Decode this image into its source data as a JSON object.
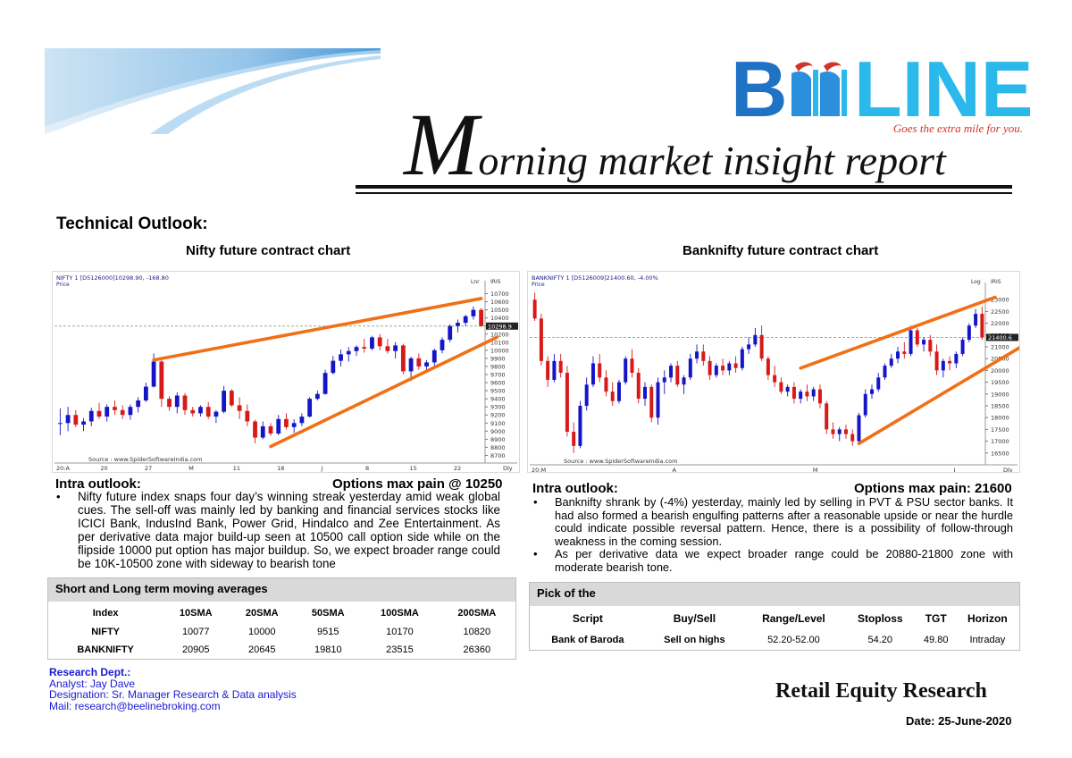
{
  "brand": {
    "logo_text": "BEELINE",
    "tagline": "Goes the extra mile for you.",
    "colors": {
      "blue": "#1f72c4",
      "light_blue": "#2bb8ea",
      "red": "#d1342b"
    }
  },
  "report": {
    "title_first_letter": "M",
    "title_rest": "orning market insight report",
    "section_heading": "Technical Outlook:"
  },
  "nifty": {
    "chart_title": "Nifty future contract chart",
    "intra_label": "Intra  outlook:",
    "options_pain": "Options max pain @  10250",
    "bullets": [
      "Nifty future index snaps four day’s winning streak yesterday amid weak global cues. The sell-off was mainly led by banking and financial services stocks like ICICI Bank, IndusInd Bank, Power Grid, Hindalco and Zee Entertainment. As per derivative data major build-up seen at 10500 call option side while on the flipside 10000 put option has major buildup. So, we expect broader range could be 10K-10500 zone with sideway to bearish tone"
    ]
  },
  "banknifty": {
    "chart_title": "Banknifty future contract chart",
    "intra_label": "Intra  outlook:",
    "options_pain": "Options max pain: 21600",
    "bullets": [
      "Banknifty shrank by (-4%) yesterday, mainly led by selling in PVT & PSU sector banks. It had also formed a bearish engulfing patterns after a reasonable upside or near the hurdle could indicate possible reversal pattern. Hence, there is a possibility of follow-through weakness in the coming session.",
      "As per derivative data we expect broader range could be 20880-21800 zone with moderate bearish tone."
    ]
  },
  "moving_averages": {
    "heading": "Short and Long term moving averages",
    "columns": [
      "Index",
      "10SMA",
      "20SMA",
      "50SMA",
      "100SMA",
      "200SMA"
    ],
    "rows": [
      [
        "NIFTY",
        "10077",
        "10000",
        "9515",
        "10170",
        "10820"
      ],
      [
        "BANKNIFTY",
        "20905",
        "20645",
        "19810",
        "23515",
        "26360"
      ]
    ]
  },
  "pick": {
    "heading": "Pick of the",
    "columns": [
      "Script",
      "Buy/Sell",
      "Range/Level",
      "Stoploss",
      "TGT",
      "Horizon"
    ],
    "rows": [
      [
        "Bank of Baroda",
        "Sell on highs",
        "52.20-52.00",
        "54.20",
        "49.80",
        "Intraday"
      ]
    ]
  },
  "research": {
    "dept": "Research Dept.:",
    "analyst": "Analyst: Jay Dave",
    "designation": "Designation: Sr. Manager Research & Data analysis",
    "mail": "Mail: research@beelinebroking.com"
  },
  "footer": {
    "retail": "Retail Equity Research",
    "date": "Date: 25-June-2020"
  },
  "chart_data": [
    {
      "type": "candlestick",
      "title": "NIFTY 1 [D5126000]10298.90,  -168.80",
      "label_sub": "Price",
      "scale_label": "Lnr",
      "side_label": "IRIS",
      "last_price_tag": "10298.9",
      "source": "Source : www.SpiderSoftwareIndia.com",
      "period_label": "Dly",
      "x_labels": [
        "20:A",
        "20",
        "27",
        "M",
        "11",
        "18",
        "J",
        "8",
        "15",
        "22"
      ],
      "y_ticks": [
        8700,
        8800,
        8900,
        9000,
        9100,
        9200,
        9300,
        9400,
        9500,
        9600,
        9700,
        9800,
        9900,
        10000,
        10100,
        10200,
        10300,
        10400,
        10500,
        10600,
        10700
      ],
      "ylim": [
        8650,
        10750
      ],
      "ohlc": [
        [
          9090,
          9280,
          8950,
          9100
        ],
        [
          9100,
          9300,
          9000,
          9200
        ],
        [
          9200,
          9260,
          9050,
          9080
        ],
        [
          9080,
          9160,
          9000,
          9120
        ],
        [
          9120,
          9290,
          9060,
          9250
        ],
        [
          9250,
          9350,
          9150,
          9180
        ],
        [
          9180,
          9330,
          9120,
          9300
        ],
        [
          9300,
          9380,
          9200,
          9260
        ],
        [
          9260,
          9320,
          9150,
          9200
        ],
        [
          9200,
          9330,
          9140,
          9300
        ],
        [
          9300,
          9420,
          9230,
          9380
        ],
        [
          9380,
          9600,
          9360,
          9550
        ],
        [
          9550,
          9960,
          9540,
          9860
        ],
        [
          9860,
          9900,
          9300,
          9400
        ],
        [
          9400,
          9430,
          9250,
          9300
        ],
        [
          9300,
          9480,
          9220,
          9440
        ],
        [
          9440,
          9470,
          9200,
          9260
        ],
        [
          9260,
          9300,
          9180,
          9220
        ],
        [
          9220,
          9320,
          9180,
          9300
        ],
        [
          9300,
          9360,
          9150,
          9180
        ],
        [
          9180,
          9260,
          9100,
          9240
        ],
        [
          9240,
          9560,
          9220,
          9500
        ],
        [
          9500,
          9520,
          9300,
          9320
        ],
        [
          9320,
          9420,
          9150,
          9250
        ],
        [
          9250,
          9330,
          9060,
          9120
        ],
        [
          9120,
          9140,
          8850,
          8920
        ],
        [
          8920,
          9120,
          8900,
          9060
        ],
        [
          9060,
          9100,
          8940,
          8970
        ],
        [
          8970,
          9200,
          8950,
          9150
        ],
        [
          9150,
          9220,
          9020,
          9050
        ],
        [
          9050,
          9150,
          8980,
          9100
        ],
        [
          9100,
          9220,
          9060,
          9180
        ],
        [
          9180,
          9420,
          9170,
          9400
        ],
        [
          9400,
          9500,
          9380,
          9460
        ],
        [
          9460,
          9760,
          9450,
          9720
        ],
        [
          9720,
          9930,
          9700,
          9870
        ],
        [
          9870,
          10010,
          9800,
          9950
        ],
        [
          9950,
          10040,
          9860,
          9990
        ],
        [
          9990,
          10060,
          9930,
          10040
        ],
        [
          10040,
          10140,
          9970,
          10020
        ],
        [
          10020,
          10180,
          10000,
          10160
        ],
        [
          10160,
          10200,
          10000,
          10050
        ],
        [
          10050,
          10140,
          9960,
          9990
        ],
        [
          9990,
          10100,
          9900,
          10060
        ],
        [
          10060,
          10080,
          9700,
          9740
        ],
        [
          9740,
          9920,
          9620,
          9900
        ],
        [
          9900,
          9960,
          9760,
          9800
        ],
        [
          9800,
          9880,
          9740,
          9850
        ],
        [
          9850,
          10020,
          9780,
          10000
        ],
        [
          10000,
          10160,
          9960,
          10130
        ],
        [
          10130,
          10320,
          10100,
          10300
        ],
        [
          10300,
          10380,
          10220,
          10340
        ],
        [
          10340,
          10440,
          10300,
          10420
        ],
        [
          10420,
          10540,
          10380,
          10500
        ],
        [
          10500,
          10520,
          10290,
          10299
        ]
      ],
      "trendlines": [
        {
          "from": [
            12,
            9880
          ],
          "to": [
            54,
            10640
          ]
        },
        {
          "from": [
            27,
            8810
          ],
          "to": [
            56,
            10160
          ]
        }
      ]
    },
    {
      "type": "candlestick",
      "title": "BANKNIFTY 1 [D5126009]21400.60,  -4.00%",
      "label_sub": "Price",
      "scale_label": "Log",
      "side_label": "IRIS",
      "last_price_tag": "21400.6",
      "source": "Source : www.SpiderSoftwareIndia.com",
      "period_label": "Dly",
      "x_labels": [
        "20:M",
        "A",
        "M",
        "J"
      ],
      "y_ticks": [
        16500,
        17000,
        17500,
        18000,
        18500,
        19000,
        19500,
        20000,
        20500,
        21000,
        21500,
        22000,
        22500,
        23000
      ],
      "ylim": [
        16150,
        23350
      ],
      "ohlc": [
        [
          23000,
          23300,
          22100,
          22200
        ],
        [
          22200,
          22400,
          20200,
          20400
        ],
        [
          20400,
          20600,
          19300,
          19600
        ],
        [
          19600,
          20700,
          19500,
          20400
        ],
        [
          20400,
          20700,
          19700,
          19900
        ],
        [
          19900,
          20200,
          17200,
          17400
        ],
        [
          17400,
          17800,
          16500,
          16800
        ],
        [
          16800,
          18700,
          16700,
          18500
        ],
        [
          18500,
          19700,
          18300,
          19400
        ],
        [
          19400,
          20600,
          19300,
          20300
        ],
        [
          20300,
          20700,
          19500,
          19700
        ],
        [
          19700,
          20000,
          18900,
          19100
        ],
        [
          19100,
          19500,
          18500,
          18700
        ],
        [
          18700,
          19600,
          18600,
          19500
        ],
        [
          19500,
          20600,
          19400,
          20500
        ],
        [
          20500,
          20900,
          19700,
          19900
        ],
        [
          19900,
          20100,
          18600,
          18800
        ],
        [
          18800,
          19500,
          18500,
          19300
        ],
        [
          19300,
          19400,
          17800,
          18000
        ],
        [
          18000,
          19700,
          17700,
          19500
        ],
        [
          19500,
          20000,
          19000,
          19700
        ],
        [
          19700,
          20300,
          19500,
          20200
        ],
        [
          20200,
          20400,
          19300,
          19400
        ],
        [
          19400,
          19800,
          19000,
          19700
        ],
        [
          19700,
          20700,
          19600,
          20500
        ],
        [
          20500,
          21100,
          20300,
          20800
        ],
        [
          20800,
          21100,
          20200,
          20400
        ],
        [
          20400,
          20600,
          19600,
          19800
        ],
        [
          19800,
          20300,
          19700,
          20200
        ],
        [
          20200,
          20500,
          19800,
          20000
        ],
        [
          20000,
          20400,
          19800,
          20300
        ],
        [
          20300,
          20600,
          19900,
          20100
        ],
        [
          20100,
          21000,
          20000,
          20900
        ],
        [
          20900,
          21400,
          20700,
          21100
        ],
        [
          21100,
          21800,
          21000,
          21500
        ],
        [
          21500,
          21900,
          20400,
          20500
        ],
        [
          20500,
          20600,
          19600,
          19800
        ],
        [
          19800,
          20200,
          19300,
          19500
        ],
        [
          19500,
          19700,
          19000,
          19100
        ],
        [
          19100,
          19400,
          18900,
          19300
        ],
        [
          19300,
          19500,
          18600,
          18800
        ],
        [
          18800,
          19200,
          18600,
          19100
        ],
        [
          19100,
          19400,
          18700,
          18900
        ],
        [
          18900,
          19300,
          18700,
          19200
        ],
        [
          19200,
          19400,
          18400,
          18600
        ],
        [
          18600,
          18700,
          17300,
          17500
        ],
        [
          17500,
          17800,
          17100,
          17300
        ],
        [
          17300,
          17600,
          17000,
          17500
        ],
        [
          17500,
          17700,
          17100,
          17300
        ],
        [
          17300,
          17500,
          16800,
          17000
        ],
        [
          17000,
          18200,
          16900,
          18100
        ],
        [
          18100,
          19200,
          18000,
          19000
        ],
        [
          19000,
          19400,
          18800,
          19200
        ],
        [
          19200,
          19900,
          19100,
          19700
        ],
        [
          19700,
          20300,
          19600,
          20200
        ],
        [
          20200,
          20700,
          20100,
          20500
        ],
        [
          20500,
          21000,
          20300,
          20800
        ],
        [
          20800,
          21200,
          20500,
          20700
        ],
        [
          20700,
          21900,
          20600,
          21700
        ],
        [
          21700,
          21800,
          21000,
          21100
        ],
        [
          21100,
          21400,
          20800,
          21300
        ],
        [
          21300,
          21500,
          20600,
          20800
        ],
        [
          20800,
          21100,
          19800,
          20000
        ],
        [
          20000,
          20500,
          19700,
          20400
        ],
        [
          20400,
          20600,
          20000,
          20300
        ],
        [
          20300,
          20800,
          20100,
          20700
        ],
        [
          20700,
          21400,
          20600,
          21300
        ],
        [
          21300,
          22000,
          21200,
          21900
        ],
        [
          21900,
          22600,
          21800,
          22400
        ],
        [
          22400,
          22700,
          21300,
          21400
        ]
      ],
      "trendlines": [
        {
          "from": [
            41,
            20100
          ],
          "to": [
            71,
            23100
          ]
        },
        {
          "from": [
            50,
            16900
          ],
          "to": [
            75,
            21000
          ]
        }
      ]
    }
  ]
}
